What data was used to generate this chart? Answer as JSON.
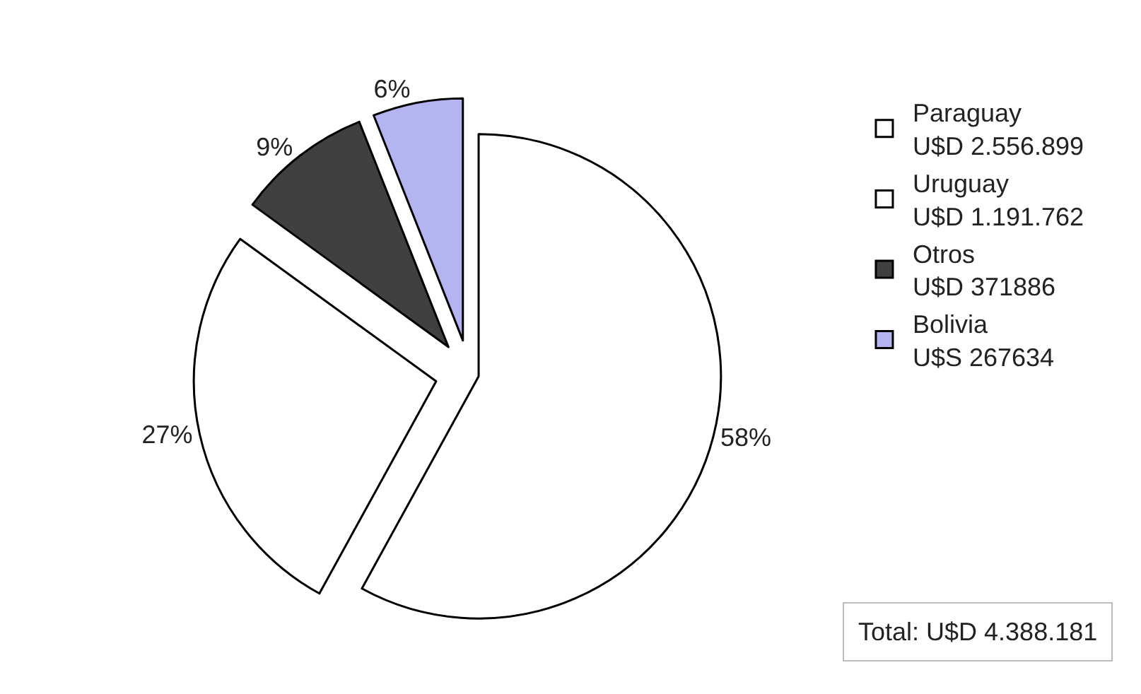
{
  "chart_data": {
    "type": "pie",
    "categories": [
      "Paraguay\nU$D 2.556.899",
      "Uruguay\nU$D 1.191.762",
      "Otros\nU$D 371886",
      "Bolivia\nU$S 267634"
    ],
    "values": [
      58,
      27,
      9,
      6
    ],
    "value_labels": [
      "58%",
      "27%",
      "9%",
      "6%"
    ],
    "colors": [
      "#ffffff",
      "#ffffff",
      "#404040",
      "#b4b4f0"
    ],
    "legend": "right",
    "annotations": [
      "Total: U$D 4.388.181"
    ]
  }
}
